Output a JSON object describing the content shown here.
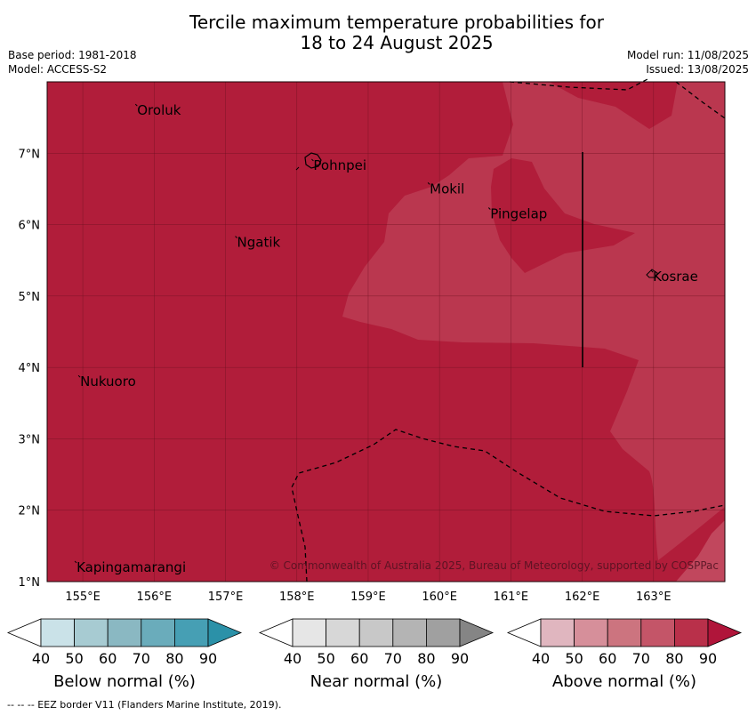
{
  "title_line1": "Tercile maximum temperature probabilities for",
  "title_line2": "18 to 24 August 2025",
  "meta": {
    "base_period": "Base period: 1981-2018",
    "model": "Model: ACCESS-S2",
    "model_run": "Model run: 11/08/2025",
    "issued": "Issued: 13/08/2025"
  },
  "map": {
    "lon_range": [
      154.5,
      164.0
    ],
    "lat_range": [
      1.0,
      8.0
    ],
    "x_ticks": [
      "155°E",
      "156°E",
      "157°E",
      "158°E",
      "159°E",
      "160°E",
      "161°E",
      "162°E",
      "163°E"
    ],
    "y_ticks": [
      "1°N",
      "2°N",
      "3°N",
      "4°N",
      "5°N",
      "6°N",
      "7°N"
    ],
    "places": [
      {
        "name": "Oroluk",
        "lon": 155.75,
        "lat": 7.65
      },
      {
        "name": "Pohnpei",
        "lon": 158.22,
        "lat": 6.88
      },
      {
        "name": "Mokil",
        "lon": 159.85,
        "lat": 6.55
      },
      {
        "name": "Pingelap",
        "lon": 160.7,
        "lat": 6.2
      },
      {
        "name": "Ngatik",
        "lon": 157.15,
        "lat": 5.8
      },
      {
        "name": "Kosrae",
        "lon": 162.98,
        "lat": 5.32
      },
      {
        "name": "Nukuoro",
        "lon": 154.95,
        "lat": 3.85
      },
      {
        "name": "Kapingamarangi",
        "lon": 154.9,
        "lat": 1.25
      }
    ],
    "copyright": "© Commonwealth of Australia 2025, Bureau of Meteorology, supported by COSPPac",
    "colors": {
      "above_90": "#b11d3a",
      "above_80": "#ba374f",
      "grid": "#6a1020",
      "border": "#000000"
    }
  },
  "legends": [
    {
      "label": "Below normal (%)",
      "ticks": [
        "40",
        "50",
        "60",
        "70",
        "80",
        "90"
      ],
      "colors": [
        "#ffffff",
        "#cae2e8",
        "#a7cbd2",
        "#8ab8c2",
        "#6aacbb",
        "#469fb4",
        "#2b91a8"
      ]
    },
    {
      "label": "Near normal (%)",
      "ticks": [
        "40",
        "50",
        "60",
        "70",
        "80",
        "90"
      ],
      "colors": [
        "#ffffff",
        "#e6e6e6",
        "#d7d7d7",
        "#c8c8c8",
        "#b4b4b4",
        "#a0a0a0",
        "#858585"
      ]
    },
    {
      "label": "Above normal (%)",
      "ticks": [
        "40",
        "50",
        "60",
        "70",
        "80",
        "90"
      ],
      "colors": [
        "#ffffff",
        "#e0b6bf",
        "#d68f9a",
        "#cc747f",
        "#c45568",
        "#b9304a",
        "#b0153a"
      ]
    }
  ],
  "footer": "--  --  -- EEZ border V11 (Flanders Marine Institute, 2019)."
}
